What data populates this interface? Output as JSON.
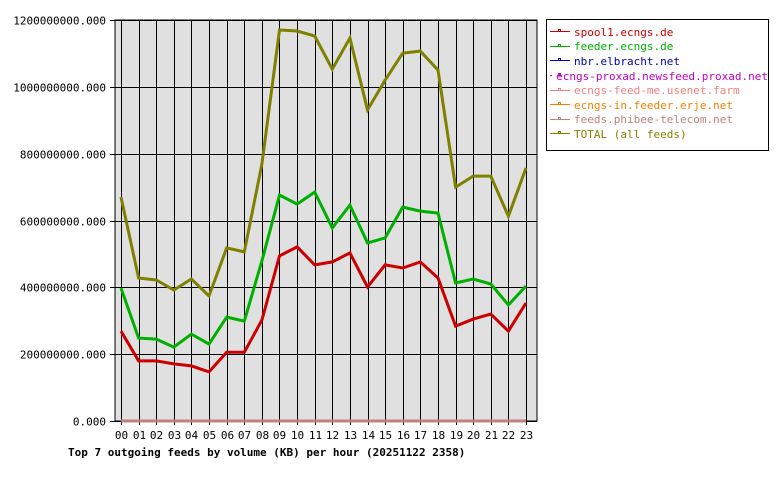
{
  "chart_data": {
    "type": "line",
    "title": "Top 7 outgoing feeds by volume (KB) per hour (20251122 2358)",
    "xlabel": "",
    "ylabel": "",
    "ylim": [
      0,
      1200000000
    ],
    "yticks": [
      "0.000",
      "200000000.000",
      "400000000.000",
      "600000000.000",
      "800000000.000",
      "1000000000.000",
      "1200000000.000"
    ],
    "grid": true,
    "legend_position": "right",
    "categories": [
      "00",
      "01",
      "02",
      "03",
      "04",
      "05",
      "06",
      "07",
      "08",
      "09",
      "10",
      "11",
      "12",
      "13",
      "14",
      "15",
      "16",
      "17",
      "18",
      "19",
      "20",
      "21",
      "22",
      "23"
    ],
    "series": [
      {
        "name": "spool1.ecngs.de",
        "color": "#cc0000",
        "values": [
          269000000,
          180000000,
          180000000,
          171000000,
          165000000,
          147000000,
          206000000,
          206000000,
          302000000,
          494000000,
          521000000,
          467000000,
          476000000,
          503000000,
          401000000,
          467000000,
          458000000,
          476000000,
          428000000,
          284000000,
          305000000,
          320000000,
          269000000,
          353000000
        ]
      },
      {
        "name": "feeder.ecngs.de",
        "color": "#00b000",
        "values": [
          398000000,
          248000000,
          245000000,
          221000000,
          260000000,
          230000000,
          311000000,
          299000000,
          479000000,
          676000000,
          649000000,
          685000000,
          578000000,
          646000000,
          533000000,
          548000000,
          640000000,
          628000000,
          622000000,
          413000000,
          425000000,
          410000000,
          347000000,
          404000000
        ]
      },
      {
        "name": "nbr.elbracht.net",
        "color": "#0000b0",
        "values": [
          0,
          0,
          0,
          0,
          0,
          0,
          0,
          0,
          0,
          0,
          0,
          0,
          0,
          0,
          0,
          0,
          0,
          0,
          0,
          0,
          0,
          0,
          0,
          0
        ]
      },
      {
        "name": "ecngs-proxad.newsfeed.proxad.net",
        "color": "#c000c0",
        "values": [
          0,
          0,
          0,
          0,
          0,
          0,
          0,
          0,
          0,
          0,
          0,
          0,
          0,
          0,
          0,
          0,
          0,
          0,
          0,
          0,
          0,
          0,
          0,
          0
        ]
      },
      {
        "name": "ecngs-feed-me.usenet.farm",
        "color": "#f08080",
        "values": [
          0,
          0,
          0,
          0,
          0,
          0,
          0,
          0,
          0,
          0,
          0,
          0,
          0,
          0,
          0,
          0,
          0,
          0,
          0,
          0,
          0,
          0,
          0,
          0
        ]
      },
      {
        "name": "ecngs-in.feeder.erje.net",
        "color": "#f08000",
        "values": [
          0,
          0,
          0,
          0,
          0,
          0,
          0,
          0,
          0,
          0,
          0,
          0,
          0,
          0,
          0,
          0,
          0,
          0,
          0,
          0,
          0,
          0,
          0,
          0
        ]
      },
      {
        "name": "feeds.phibee-telecom.net",
        "color": "#c08080",
        "values": [
          0,
          0,
          0,
          0,
          0,
          0,
          0,
          0,
          0,
          0,
          0,
          0,
          0,
          0,
          0,
          0,
          0,
          0,
          0,
          0,
          0,
          0,
          0,
          0
        ]
      },
      {
        "name": "TOTAL (all feeds)",
        "color": "#808000",
        "values": [
          670000000,
          428000000,
          422000000,
          392000000,
          425000000,
          374000000,
          518000000,
          506000000,
          769000000,
          1170000000,
          1167000000,
          1152000000,
          1053000000,
          1146000000,
          931000000,
          1020000000,
          1101000000,
          1107000000,
          1050000000,
          700000000,
          733000000,
          733000000,
          613000000,
          757000000
        ]
      }
    ]
  },
  "colors": {
    "plot_background": "#e0e0e0",
    "grid": "#000000",
    "axis": "#000000"
  }
}
